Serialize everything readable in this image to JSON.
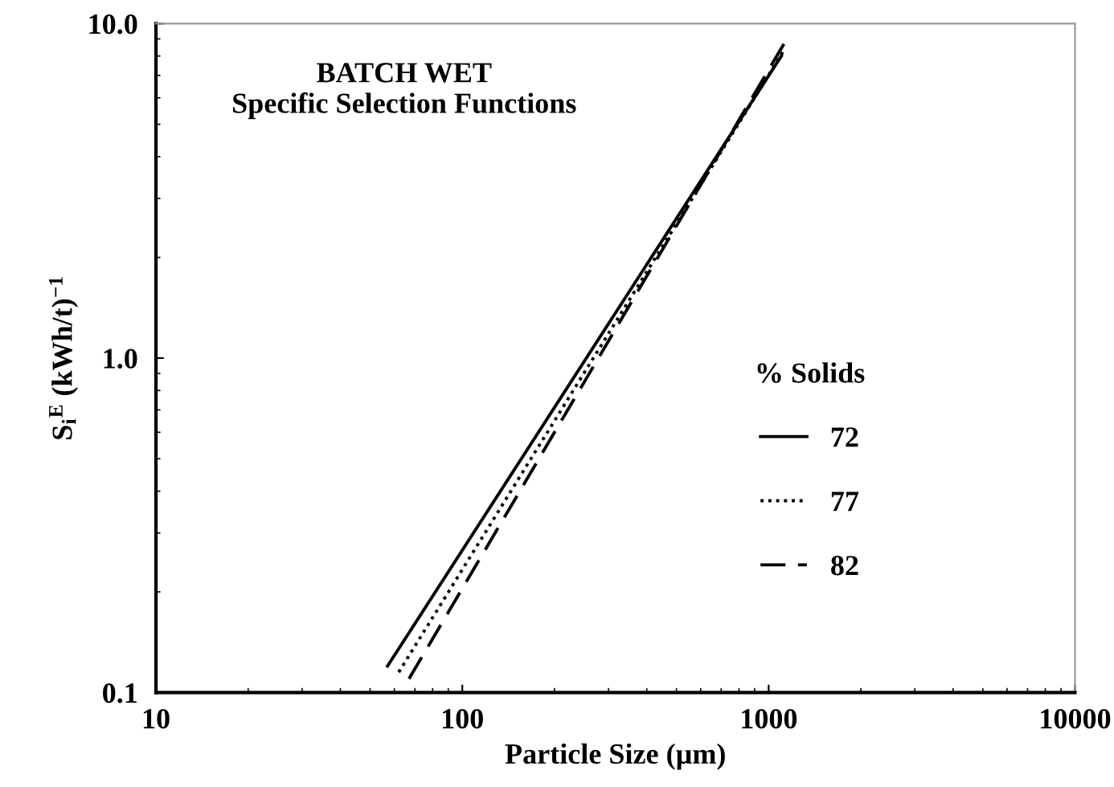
{
  "chart_data": {
    "type": "line",
    "title": "BATCH WET\nSpecific Selection Functions",
    "xlabel": "Particle Size (µm)",
    "ylabel": "S$_{i}$$^{E}$ (kWh/t)$^{−1}$",
    "legend_title": "% Solids",
    "log": "xy",
    "xlim": [
      10,
      10000
    ],
    "ylim": [
      0.1,
      10
    ],
    "xticks": [
      10,
      100,
      1000,
      10000
    ],
    "yticks": [
      {
        "value": 0.1,
        "label": "0.1"
      },
      {
        "value": 1,
        "label": "1.0"
      },
      {
        "value": 10,
        "label": "10.0"
      }
    ],
    "grid": false,
    "legend": "right",
    "marker": "none",
    "series": [
      {
        "name": "72",
        "color": "#000000",
        "line_style": "solid",
        "x": [
          57,
          1100
        ],
        "values": [
          0.12,
          8.0
        ]
      },
      {
        "name": "77",
        "color": "#000000",
        "line_style": "dotted",
        "x": [
          62,
          1120
        ],
        "values": [
          0.115,
          8.3
        ]
      },
      {
        "name": "82",
        "color": "#000000",
        "line_style": "dashed",
        "x": [
          67,
          1130
        ],
        "values": [
          0.11,
          8.8
        ]
      }
    ]
  }
}
